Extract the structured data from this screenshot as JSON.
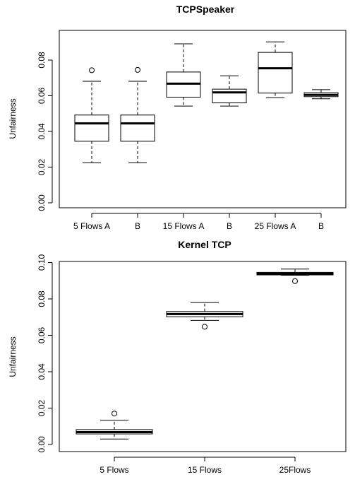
{
  "chart_data": [
    {
      "type": "boxplot",
      "title": "TCPSpeaker",
      "xlabel": "",
      "ylabel": "Unfairness",
      "ylim": [
        0.0,
        0.09
      ],
      "yticks": [
        0.0,
        0.02,
        0.04,
        0.06,
        0.08
      ],
      "ytick_labels": [
        "0.00",
        "0.02",
        "0.04",
        "0.06",
        "0.08"
      ],
      "categories": [
        "5 Flows A",
        "B",
        "15 Flows A",
        "B",
        "25 Flows A",
        "B"
      ],
      "boxes": [
        {
          "whisker_low": 0.0225,
          "q1": 0.0345,
          "median": 0.0445,
          "q3": 0.0492,
          "whisker_high": 0.0681,
          "outliers": [
            0.0743
          ]
        },
        {
          "whisker_low": 0.0225,
          "q1": 0.0345,
          "median": 0.0445,
          "q3": 0.0492,
          "whisker_high": 0.0681,
          "outliers": [
            0.0745
          ]
        },
        {
          "whisker_low": 0.0542,
          "q1": 0.0592,
          "median": 0.0668,
          "q3": 0.0733,
          "whisker_high": 0.0891,
          "outliers": []
        },
        {
          "whisker_low": 0.0542,
          "q1": 0.056,
          "median": 0.0619,
          "q3": 0.0637,
          "whisker_high": 0.0712,
          "outliers": []
        },
        {
          "whisker_low": 0.0589,
          "q1": 0.0615,
          "median": 0.0754,
          "q3": 0.0843,
          "whisker_high": 0.0902,
          "outliers": []
        },
        {
          "whisker_low": 0.0583,
          "q1": 0.0595,
          "median": 0.0605,
          "q3": 0.0617,
          "whisker_high": 0.0634,
          "outliers": []
        }
      ],
      "grid": false
    },
    {
      "type": "boxplot",
      "title": "Kernel TCP",
      "xlabel": "",
      "ylabel": "Unfairness",
      "ylim": [
        0.0,
        0.1
      ],
      "yticks": [
        0.0,
        0.02,
        0.04,
        0.06,
        0.08,
        0.1
      ],
      "ytick_labels": [
        "0.00",
        "0.02",
        "0.04",
        "0.06",
        "0.08",
        "0.10"
      ],
      "categories": [
        "5 Flows",
        "15 Flows",
        "25Flows"
      ],
      "boxes": [
        {
          "whisker_low": 0.003,
          "q1": 0.0058,
          "median": 0.0068,
          "q3": 0.0082,
          "whisker_high": 0.0133,
          "outliers": [
            0.017
          ]
        },
        {
          "whisker_low": 0.0682,
          "q1": 0.0702,
          "median": 0.0717,
          "q3": 0.0731,
          "whisker_high": 0.078,
          "outliers": [
            0.0647
          ]
        },
        {
          "whisker_low": 0.093,
          "q1": 0.0932,
          "median": 0.0939,
          "q3": 0.0946,
          "whisker_high": 0.0964,
          "outliers": [
            0.0898
          ]
        }
      ],
      "grid": false
    }
  ]
}
